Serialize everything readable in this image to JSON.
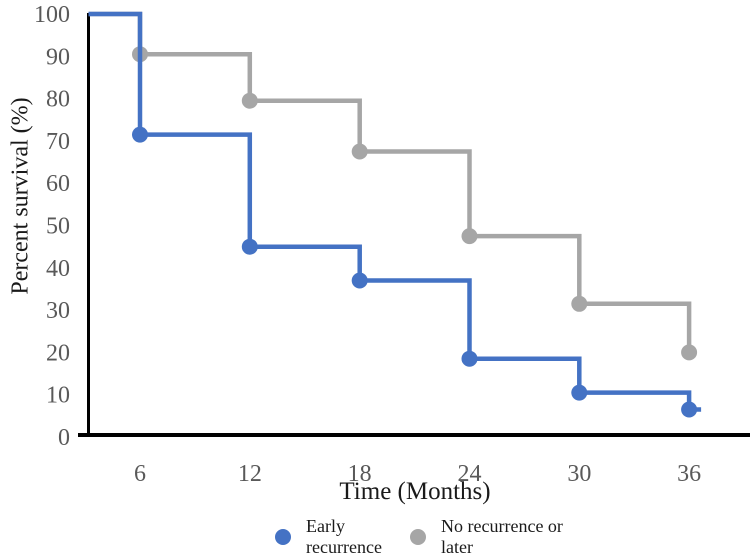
{
  "chart_data": {
    "type": "line",
    "variant": "kaplan-meier-step",
    "title": "",
    "xlabel": "Time (Months)",
    "ylabel": "Percent survival (%)",
    "x_ticks": [
      6,
      12,
      18,
      24,
      30,
      36
    ],
    "y_ticks": [
      0,
      10,
      20,
      30,
      40,
      50,
      60,
      70,
      80,
      90,
      100
    ],
    "ylim": [
      0,
      100
    ],
    "grid": false,
    "legend_position": "bottom-center",
    "axis_color": "#000000",
    "tick_label_color": "#595959",
    "series": [
      {
        "name": "Early recurrence",
        "color": "#4472c4",
        "start_value": 100,
        "x": [
          6,
          12,
          18,
          24,
          30,
          36
        ],
        "values": [
          71.5,
          45,
          37,
          18.5,
          10.5,
          6.5
        ],
        "tail": true
      },
      {
        "name": "No recurrence or later",
        "color": "#a6a6a6",
        "start_value": 100,
        "x": [
          6,
          12,
          18,
          24,
          30,
          36
        ],
        "values": [
          90.5,
          79.5,
          67.5,
          47.5,
          31.5,
          20
        ],
        "tail": false
      }
    ]
  },
  "legend": {
    "items": [
      {
        "label": "Early recurrence",
        "color": "#4472c4"
      },
      {
        "label": "No recurrence or later",
        "color": "#a6a6a6"
      }
    ]
  }
}
